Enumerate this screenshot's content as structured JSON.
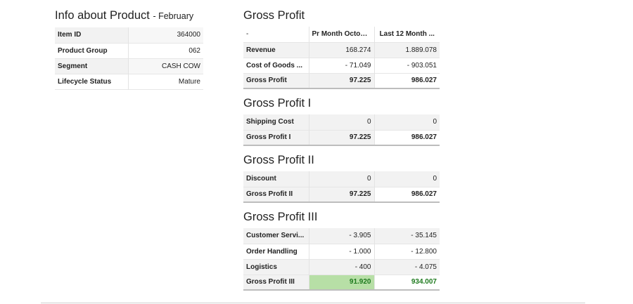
{
  "info": {
    "title": "Info about Product",
    "subtitle": "- February",
    "rows": [
      {
        "label": "Item ID",
        "value": "364000"
      },
      {
        "label": "Product Group",
        "value": "062"
      },
      {
        "label": "Segment",
        "value": "CASH COW"
      },
      {
        "label": "Lifecycle Status",
        "value": "Mature"
      }
    ]
  },
  "gross_profit": {
    "title": "Gross Profit",
    "headers": [
      "-",
      "Pr Month October",
      "Last 12 Month ..."
    ],
    "rows": [
      {
        "label": "Revenue",
        "month": "168.274",
        "year": "1.889.078"
      },
      {
        "label": "Cost of Goods ...",
        "month": "- 71.049",
        "year": "- 903.051"
      }
    ],
    "total": {
      "label": "Gross Profit",
      "month": "97.225",
      "year": "986.027"
    }
  },
  "gross_profit_1": {
    "title": "Gross Profit I",
    "rows": [
      {
        "label": "Shipping Cost",
        "month": "0",
        "year": "0"
      }
    ],
    "total": {
      "label": "Gross Profit I",
      "month": "97.225",
      "year": "986.027"
    }
  },
  "gross_profit_2": {
    "title": "Gross Profit II",
    "rows": [
      {
        "label": "Discount",
        "month": "0",
        "year": "0"
      }
    ],
    "total": {
      "label": "Gross Profit II",
      "month": "97.225",
      "year": "986.027"
    }
  },
  "gross_profit_3": {
    "title": "Gross Profit III",
    "rows": [
      {
        "label": "Customer Servi...",
        "month": "- 3.905",
        "year": "- 35.145"
      },
      {
        "label": "Order Handling",
        "month": "- 1.000",
        "year": "- 12.800"
      },
      {
        "label": "Logistics",
        "month": "- 400",
        "year": "- 4.075"
      }
    ],
    "total": {
      "label": "Gross Profit III",
      "month": "91.920",
      "year": "934.007"
    }
  },
  "colors": {
    "positive_fill": "#b7dfa6",
    "positive_text": "#1e7a1e"
  }
}
